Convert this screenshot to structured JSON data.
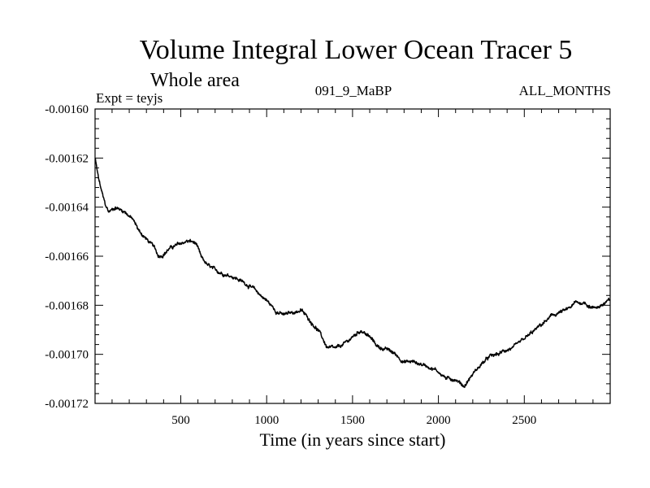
{
  "chart_data": {
    "type": "line",
    "title": "Volume Integral Lower Ocean Tracer 5",
    "subtitle": "Whole area",
    "expt_label": "Expt = teyjs",
    "run_label": "091_9_MaBP",
    "period_label": "ALL_MONTHS",
    "xlabel": "Time (in years since start)",
    "ylabel": "",
    "xlim": [
      1,
      3000
    ],
    "ylim": [
      -0.00172,
      -0.0016
    ],
    "x_ticks": [
      500,
      1000,
      1500,
      2000,
      2500
    ],
    "x_tick_labels": [
      "500",
      "1000",
      "1500",
      "2000",
      "2500"
    ],
    "y_ticks": [
      -0.0016,
      -0.00162,
      -0.00164,
      -0.00166,
      -0.00168,
      -0.0017,
      -0.00172
    ],
    "y_tick_labels": [
      "-0.00160",
      "-0.00162",
      "-0.00164",
      "-0.00166",
      "-0.00168",
      "-0.00170",
      "-0.00172"
    ],
    "grid": false,
    "series": [
      {
        "name": "teyjs",
        "color": "#000000",
        "x": [
          1,
          20,
          40,
          60,
          80,
          100,
          120,
          150,
          180,
          220,
          260,
          300,
          340,
          370,
          400,
          430,
          460,
          500,
          530,
          560,
          590,
          620,
          660,
          700,
          750,
          800,
          850,
          900,
          950,
          1000,
          1050,
          1100,
          1150,
          1200,
          1250,
          1300,
          1350,
          1400,
          1450,
          1500,
          1550,
          1600,
          1650,
          1700,
          1750,
          1800,
          1850,
          1900,
          1950,
          2000,
          2050,
          2100,
          2150,
          2200,
          2250,
          2300,
          2350,
          2400,
          2450,
          2500,
          2550,
          2600,
          2650,
          2700,
          2750,
          2800,
          2850,
          2900,
          2950,
          3000
        ],
        "values": [
          -0.00162,
          -0.001628,
          -0.001634,
          -0.001639,
          -0.001642,
          -0.001641,
          -0.00164,
          -0.001641,
          -0.001642,
          -0.001645,
          -0.00165,
          -0.001653,
          -0.001656,
          -0.00166,
          -0.001659,
          -0.001657,
          -0.001656,
          -0.001655,
          -0.001654,
          -0.001654,
          -0.001655,
          -0.001661,
          -0.001664,
          -0.001666,
          -0.001667,
          -0.001668,
          -0.00167,
          -0.001672,
          -0.001675,
          -0.001678,
          -0.001682,
          -0.001684,
          -0.001683,
          -0.001682,
          -0.001686,
          -0.00169,
          -0.001697,
          -0.001698,
          -0.001696,
          -0.001693,
          -0.00169,
          -0.001693,
          -0.001697,
          -0.001698,
          -0.0017,
          -0.001703,
          -0.001703,
          -0.001704,
          -0.001705,
          -0.001707,
          -0.00171,
          -0.00171,
          -0.001713,
          -0.001708,
          -0.001704,
          -0.001701,
          -0.0017,
          -0.001698,
          -0.001697,
          -0.001694,
          -0.001691,
          -0.001688,
          -0.001685,
          -0.001683,
          -0.001682,
          -0.001679,
          -0.001679,
          -0.001681,
          -0.00168,
          -0.001678
        ]
      }
    ]
  }
}
